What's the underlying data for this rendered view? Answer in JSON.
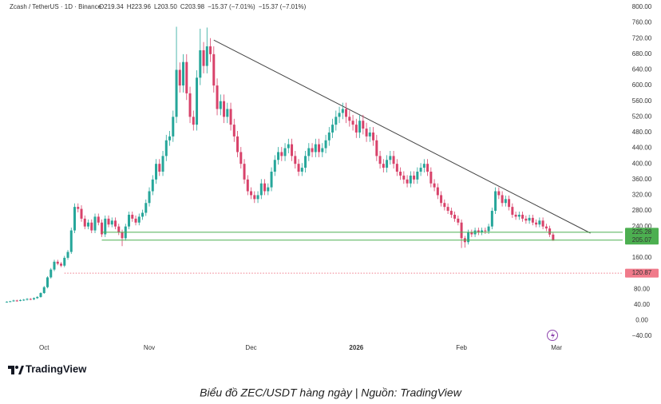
{
  "chart_data": {
    "type": "candlestick",
    "header": {
      "symbol": "Zcash / TetherUS · 1D · Binance",
      "ohlc": [
        "O219.34",
        "H223.96",
        "L203.50",
        "C203.98"
      ],
      "change": "−15.37 (−7.01%)"
    },
    "xlim": [
      -2,
      181.5
    ],
    "xticks": [
      {
        "value": 11,
        "label": "Oct"
      },
      {
        "value": 42,
        "label": "Nov"
      },
      {
        "value": 72,
        "label": "Dec"
      },
      {
        "value": 103,
        "label": "2026",
        "bold": true
      },
      {
        "value": 134,
        "label": "Feb"
      },
      {
        "value": 162,
        "label": "Mar"
      }
    ],
    "ylim": [
      -40,
      800
    ],
    "yticks": [
      {
        "value": 800,
        "label": "800.00"
      },
      {
        "value": 760,
        "label": "760.00"
      },
      {
        "value": 720,
        "label": "720.00"
      },
      {
        "value": 680,
        "label": "680.00"
      },
      {
        "value": 640,
        "label": "640.00"
      },
      {
        "value": 600,
        "label": "600.00"
      },
      {
        "value": 560,
        "label": "560.00"
      },
      {
        "value": 520,
        "label": "520.00"
      },
      {
        "value": 480,
        "label": "480.00"
      },
      {
        "value": 440,
        "label": "440.00"
      },
      {
        "value": 400,
        "label": "400.00"
      },
      {
        "value": 360,
        "label": "360.00"
      },
      {
        "value": 320,
        "label": "320.00"
      },
      {
        "value": 280,
        "label": "280.00"
      },
      {
        "value": 240,
        "label": "240.00"
      },
      {
        "value": 200,
        "label": "200.00"
      },
      {
        "value": 160,
        "label": "160.00"
      },
      {
        "value": 120,
        "label": "120.00"
      },
      {
        "value": 80,
        "label": "80.00"
      },
      {
        "value": 40,
        "label": "40.00"
      },
      {
        "value": 0,
        "label": "0.00"
      },
      {
        "value": -40,
        "label": "−40.00"
      }
    ],
    "grid": false,
    "up_color": "#26a69a",
    "down_color": "#d8426a",
    "open": [
      47,
      48,
      49,
      51,
      50,
      52,
      53,
      55,
      54,
      57,
      60,
      70,
      85,
      110,
      130,
      150,
      145,
      140,
      160,
      175,
      230,
      290,
      285,
      260,
      240,
      250,
      230,
      265,
      250,
      220,
      260,
      245,
      255,
      240,
      225,
      210,
      240,
      270,
      260,
      250,
      265,
      275,
      300,
      330,
      360,
      400,
      380,
      420,
      460,
      470,
      520,
      640,
      600,
      660,
      580,
      520,
      500,
      620,
      690,
      650,
      700,
      680,
      600,
      540,
      560,
      520,
      540,
      500,
      470,
      430,
      400,
      360,
      330,
      320,
      310,
      320,
      350,
      330,
      340,
      380,
      410,
      430,
      420,
      440,
      450,
      420,
      400,
      380,
      390,
      420,
      440,
      430,
      450,
      430,
      440,
      460,
      480,
      500,
      520,
      530,
      540,
      520,
      510,
      500,
      480,
      510,
      490,
      470,
      480,
      460,
      420,
      400,
      390,
      410,
      420,
      400,
      380,
      370,
      360,
      350,
      370,
      360,
      380,
      390,
      400,
      380,
      350,
      340,
      320,
      300,
      290,
      280,
      270,
      260,
      250,
      210,
      200,
      225,
      220,
      230,
      225,
      230,
      228,
      240,
      280,
      330,
      320,
      300,
      310,
      290,
      270,
      265,
      270,
      260,
      255,
      262,
      250,
      245,
      255,
      240,
      235,
      219.34
    ],
    "high": [
      49,
      50,
      53,
      53,
      54,
      55,
      57,
      57,
      59,
      62,
      72,
      88,
      113,
      134,
      155,
      155,
      149,
      165,
      180,
      237,
      299,
      299,
      294,
      268,
      258,
      258,
      273,
      273,
      258,
      268,
      268,
      263,
      263,
      247,
      232,
      247,
      278,
      278,
      268,
      273,
      283,
      309,
      340,
      371,
      412,
      412,
      433,
      474,
      484,
      536,
      750,
      659,
      680,
      680,
      597,
      536,
      639,
      745,
      711,
      748,
      721,
      700,
      618,
      577,
      577,
      556,
      556,
      515,
      484,
      443,
      412,
      371,
      340,
      330,
      330,
      361,
      361,
      350,
      391,
      422,
      443,
      443,
      453,
      464,
      464,
      433,
      412,
      402,
      433,
      453,
      453,
      464,
      464,
      453,
      474,
      494,
      515,
      536,
      546,
      556,
      556,
      536,
      525,
      515,
      525,
      525,
      505,
      494,
      494,
      474,
      433,
      412,
      422,
      433,
      433,
      412,
      391,
      381,
      371,
      381,
      381,
      391,
      402,
      412,
      412,
      391,
      361,
      350,
      330,
      309,
      299,
      288,
      278,
      268,
      258,
      216,
      232,
      232,
      237,
      237,
      237,
      237,
      247,
      288,
      340,
      340,
      330,
      319,
      319,
      299,
      278,
      278,
      278,
      268,
      270,
      270,
      258,
      263,
      263,
      247,
      242,
      223.96
    ],
    "low": [
      46,
      47,
      48,
      48,
      49,
      50,
      51,
      52,
      52,
      55,
      58,
      68,
      82,
      107,
      126,
      141,
      136,
      136,
      155,
      170,
      223,
      276,
      252,
      233,
      233,
      223,
      223,
      243,
      213,
      213,
      238,
      238,
      233,
      218,
      190,
      204,
      233,
      252,
      243,
      243,
      257,
      267,
      291,
      320,
      349,
      369,
      369,
      407,
      446,
      456,
      504,
      582,
      582,
      563,
      504,
      485,
      485,
      601,
      631,
      631,
      660,
      582,
      524,
      524,
      504,
      504,
      485,
      456,
      417,
      388,
      349,
      320,
      310,
      300,
      300,
      310,
      320,
      320,
      330,
      369,
      398,
      407,
      407,
      427,
      407,
      388,
      369,
      369,
      378,
      407,
      417,
      417,
      417,
      417,
      427,
      446,
      466,
      485,
      504,
      514,
      504,
      495,
      485,
      466,
      466,
      475,
      456,
      456,
      446,
      407,
      388,
      378,
      378,
      398,
      388,
      369,
      359,
      349,
      340,
      340,
      349,
      349,
      369,
      378,
      369,
      340,
      330,
      310,
      291,
      281,
      272,
      262,
      252,
      243,
      185,
      186,
      194,
      213,
      213,
      218,
      218,
      221,
      221,
      233,
      272,
      310,
      291,
      291,
      281,
      262,
      257,
      257,
      252,
      247,
      247,
      243,
      238,
      238,
      233,
      228,
      213,
      203.5
    ],
    "close": [
      48,
      49,
      51,
      50,
      52,
      53,
      55,
      54,
      57,
      60,
      70,
      85,
      110,
      130,
      150,
      145,
      140,
      160,
      175,
      230,
      290,
      285,
      260,
      240,
      250,
      230,
      265,
      250,
      220,
      260,
      245,
      255,
      240,
      225,
      210,
      240,
      270,
      260,
      250,
      265,
      275,
      300,
      330,
      360,
      400,
      380,
      420,
      460,
      470,
      520,
      640,
      600,
      660,
      580,
      520,
      500,
      620,
      690,
      650,
      700,
      680,
      600,
      540,
      560,
      520,
      540,
      500,
      470,
      430,
      400,
      360,
      330,
      320,
      310,
      320,
      350,
      330,
      340,
      380,
      410,
      430,
      420,
      440,
      450,
      420,
      400,
      380,
      390,
      420,
      440,
      430,
      450,
      430,
      440,
      460,
      480,
      500,
      520,
      530,
      540,
      520,
      510,
      500,
      480,
      510,
      490,
      470,
      480,
      460,
      420,
      400,
      390,
      410,
      420,
      400,
      380,
      370,
      360,
      350,
      370,
      360,
      380,
      390,
      400,
      380,
      350,
      340,
      320,
      300,
      290,
      280,
      270,
      260,
      250,
      210,
      200,
      225,
      220,
      230,
      225,
      230,
      228,
      240,
      280,
      330,
      320,
      300,
      310,
      290,
      270,
      265,
      270,
      260,
      255,
      262,
      250,
      245,
      255,
      240,
      235,
      219.34,
      203.98
    ],
    "levels": [
      {
        "value": 225.28,
        "color": "#4caf50",
        "start": 28,
        "dashed": false
      },
      {
        "value": 205.07,
        "color": "#4caf50",
        "start": 28,
        "dashed": false
      },
      {
        "value": 120.87,
        "color": "#f07a8a",
        "start": 17,
        "dashed": true
      }
    ],
    "trendline": {
      "x": [
        61,
        172
      ],
      "y": [
        716,
        223
      ],
      "color": "#444"
    }
  },
  "brand": "TradingView",
  "caption": "Biểu đồ ZEC/USDT hàng ngày | Nguồn: TradingView"
}
